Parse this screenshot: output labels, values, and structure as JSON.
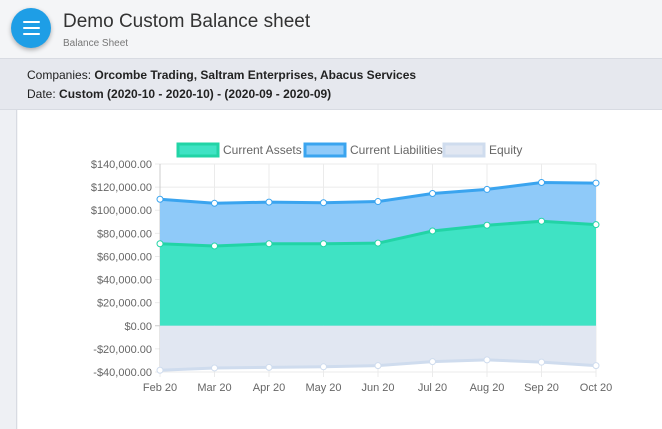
{
  "header": {
    "title": "Demo Custom Balance sheet",
    "subtitle": "Balance Sheet"
  },
  "filters": {
    "companies_label": "Companies:",
    "companies_value": "Orcombe Trading, Saltram Enterprises, Abacus Services",
    "date_label": "Date:",
    "date_value": "Custom (2020-10 - 2020-10) - (2020-09 - 2020-09)"
  },
  "chart_data": {
    "type": "area",
    "categories": [
      "Feb 20",
      "Mar 20",
      "Apr 20",
      "May 20",
      "Jun 20",
      "Jul 20",
      "Aug 20",
      "Sep 20",
      "Oct 20"
    ],
    "ylim": [
      -40000,
      140000
    ],
    "yticks": [
      140000,
      120000,
      100000,
      80000,
      60000,
      40000,
      20000,
      0,
      -20000,
      -40000
    ],
    "ytick_labels": [
      "$140,000.00",
      "$120,000.00",
      "$100,000.00",
      "$80,000.00",
      "$60,000.00",
      "$40,000.00",
      "$20,000.00",
      "$0.00",
      "-$20,000.00",
      "-$40,000.00"
    ],
    "legend_position": "top",
    "grid": true,
    "series": [
      {
        "name": "Current Assets",
        "fill": "#3fe3c4",
        "stroke": "#22d4a6",
        "values": [
          71000,
          69000,
          71000,
          71000,
          71500,
          82000,
          87000,
          90500,
          87500
        ]
      },
      {
        "name": "Current Liabilities",
        "fill": "#8fcaf9",
        "stroke": "#3aa4ef",
        "values": [
          109500,
          106000,
          107000,
          106500,
          107500,
          114500,
          118000,
          124000,
          123500
        ]
      },
      {
        "name": "Equity",
        "fill": "#e1e7f2",
        "stroke": "#cfdcee",
        "values": [
          -38500,
          -36500,
          -36000,
          -35500,
          -34500,
          -31000,
          -29500,
          -31500,
          -34500
        ]
      }
    ]
  }
}
